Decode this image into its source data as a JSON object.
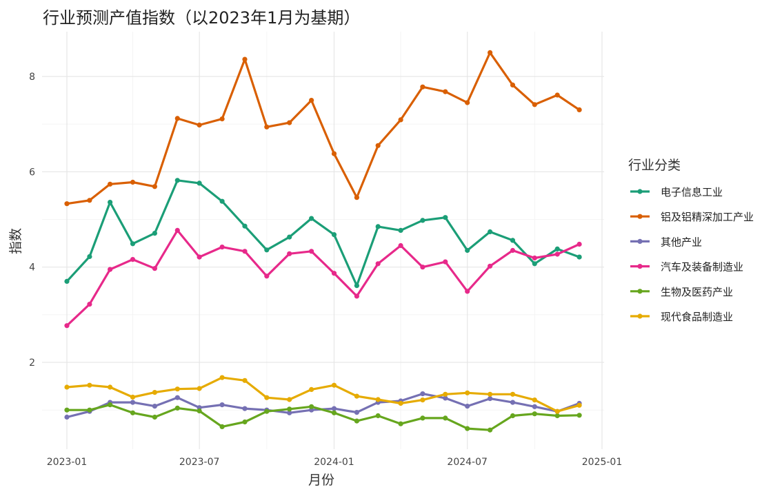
{
  "chart_data": {
    "type": "line",
    "title": "行业预测产值指数（以2023年1月为基期）",
    "xlabel": "月份",
    "ylabel": "指数",
    "legend_title": "行业分类",
    "legend_position": "right",
    "grid": true,
    "x": [
      "2023-01",
      "2023-02",
      "2023-03",
      "2023-04",
      "2023-05",
      "2023-06",
      "2023-07",
      "2023-08",
      "2023-09",
      "2023-10",
      "2023-11",
      "2023-12",
      "2024-01",
      "2024-02",
      "2024-03",
      "2024-04",
      "2024-05",
      "2024-06",
      "2024-07",
      "2024-08",
      "2024-09",
      "2024-10",
      "2024-11",
      "2024-12"
    ],
    "x_ticks": [
      "2023-01",
      "2023-07",
      "2024-01",
      "2024-07",
      "2025-01"
    ],
    "y_ticks": [
      2,
      4,
      6,
      8
    ],
    "ylim": [
      0.2,
      8.9
    ],
    "series": [
      {
        "name": "电子信息工业",
        "color": "#1b9e77",
        "values": [
          3.7,
          4.22,
          5.36,
          4.49,
          4.71,
          5.82,
          5.76,
          5.38,
          4.86,
          4.36,
          4.63,
          5.02,
          4.68,
          3.61,
          4.85,
          4.77,
          4.98,
          5.04,
          4.35,
          4.74,
          4.56,
          4.07,
          4.38,
          4.21
        ]
      },
      {
        "name": "铝及铝精深加工产业",
        "color": "#d95f02",
        "values": [
          5.33,
          5.4,
          5.74,
          5.78,
          5.69,
          7.12,
          6.98,
          7.11,
          8.36,
          6.94,
          7.03,
          7.5,
          6.38,
          5.46,
          6.55,
          7.09,
          7.78,
          7.68,
          7.45,
          8.5,
          7.82,
          7.41,
          7.61,
          7.3
        ]
      },
      {
        "name": "其他产业",
        "color": "#7570b3",
        "values": [
          0.85,
          0.97,
          1.16,
          1.16,
          1.08,
          1.26,
          1.05,
          1.11,
          1.03,
          1.0,
          0.94,
          1.0,
          1.03,
          0.95,
          1.16,
          1.19,
          1.34,
          1.25,
          1.08,
          1.24,
          1.16,
          1.07,
          0.97,
          1.14
        ]
      },
      {
        "name": "汽车及装备制造业",
        "color": "#e7298a",
        "values": [
          2.77,
          3.22,
          3.95,
          4.16,
          3.97,
          4.77,
          4.21,
          4.42,
          4.33,
          3.81,
          4.28,
          4.33,
          3.87,
          3.39,
          4.07,
          4.45,
          4.0,
          4.11,
          3.49,
          4.02,
          4.35,
          4.19,
          4.27,
          4.48
        ]
      },
      {
        "name": "生物及医药产业",
        "color": "#66a61e",
        "values": [
          1.0,
          1.0,
          1.11,
          0.94,
          0.85,
          1.04,
          0.98,
          0.65,
          0.75,
          0.97,
          1.02,
          1.07,
          0.94,
          0.77,
          0.88,
          0.71,
          0.83,
          0.83,
          0.61,
          0.58,
          0.88,
          0.92,
          0.88,
          0.89
        ]
      },
      {
        "name": "现代食品制造业",
        "color": "#e6ab02",
        "values": [
          1.48,
          1.52,
          1.48,
          1.27,
          1.37,
          1.44,
          1.45,
          1.68,
          1.62,
          1.26,
          1.22,
          1.43,
          1.52,
          1.29,
          1.22,
          1.14,
          1.21,
          1.33,
          1.36,
          1.33,
          1.33,
          1.21,
          0.97,
          1.1
        ]
      }
    ]
  }
}
